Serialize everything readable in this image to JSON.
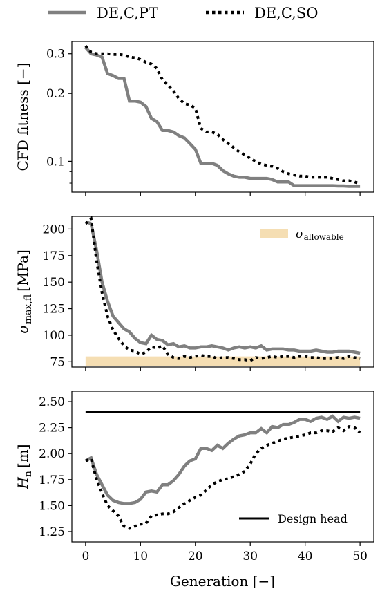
{
  "colors": {
    "pt": "#808080",
    "so": "#000000",
    "band": "#f5deb3",
    "design": "#000000"
  },
  "legend": {
    "pt_label": "DE,C,PT",
    "so_label": "DE,C,SO"
  },
  "chart_data": [
    {
      "type": "line",
      "ylabel": "CFD fitness [−]",
      "yscale": "log",
      "ylim": [
        0.073,
        0.34
      ],
      "xlim": [
        -2.5,
        52.5
      ],
      "yticks": [
        0.1,
        0.2,
        0.3
      ],
      "ytick_labels": [
        "0.1",
        "0.2",
        "0.3"
      ],
      "series": [
        {
          "name": "DE,C,PT",
          "style": "solid",
          "x": [
            0,
            1,
            2,
            3,
            4,
            5,
            6,
            7,
            8,
            9,
            10,
            11,
            12,
            13,
            14,
            15,
            16,
            17,
            18,
            19,
            20,
            21,
            22,
            23,
            24,
            25,
            26,
            27,
            28,
            29,
            30,
            31,
            32,
            33,
            34,
            35,
            36,
            37,
            38,
            39,
            40,
            41,
            42,
            43,
            44,
            45,
            46,
            47,
            48,
            49,
            50
          ],
          "values": [
            0.32,
            0.3,
            0.296,
            0.29,
            0.245,
            0.24,
            0.233,
            0.233,
            0.185,
            0.185,
            0.183,
            0.175,
            0.155,
            0.15,
            0.137,
            0.137,
            0.135,
            0.13,
            0.127,
            0.12,
            0.113,
            0.098,
            0.098,
            0.098,
            0.096,
            0.091,
            0.088,
            0.086,
            0.085,
            0.085,
            0.084,
            0.084,
            0.084,
            0.084,
            0.083,
            0.081,
            0.081,
            0.081,
            0.078,
            0.078,
            0.078,
            0.078,
            0.078,
            0.078,
            0.078,
            0.078,
            0.0778,
            0.0778,
            0.0775,
            0.0775,
            0.0775
          ]
        },
        {
          "name": "DE,C,SO",
          "style": "dotted",
          "x": [
            0,
            1,
            2,
            3,
            4,
            5,
            6,
            7,
            8,
            9,
            10,
            11,
            12,
            13,
            14,
            15,
            16,
            17,
            18,
            19,
            20,
            21,
            22,
            23,
            24,
            25,
            26,
            27,
            28,
            29,
            30,
            31,
            32,
            33,
            34,
            35,
            36,
            37,
            38,
            39,
            40,
            41,
            42,
            43,
            44,
            45,
            46,
            47,
            48,
            49,
            50
          ],
          "values": [
            0.325,
            0.305,
            0.3,
            0.3,
            0.3,
            0.298,
            0.298,
            0.296,
            0.29,
            0.288,
            0.283,
            0.275,
            0.27,
            0.258,
            0.23,
            0.218,
            0.205,
            0.19,
            0.18,
            0.178,
            0.172,
            0.14,
            0.135,
            0.135,
            0.132,
            0.125,
            0.12,
            0.115,
            0.11,
            0.107,
            0.103,
            0.1,
            0.097,
            0.096,
            0.095,
            0.093,
            0.09,
            0.088,
            0.087,
            0.086,
            0.086,
            0.085,
            0.085,
            0.085,
            0.085,
            0.084,
            0.083,
            0.082,
            0.082,
            0.081,
            0.0795
          ]
        }
      ]
    },
    {
      "type": "line",
      "ylabel_main": "σ",
      "ylabel_sub": "max,fl",
      "ylabel_unit": "[MPa]",
      "ylim": [
        70,
        212
      ],
      "xlim": [
        -2.5,
        52.5
      ],
      "yticks": [
        75,
        100,
        125,
        150,
        175,
        200
      ],
      "ytick_labels": [
        "75",
        "100",
        "125",
        "150",
        "175",
        "200"
      ],
      "band": {
        "from": 71,
        "to": 80,
        "legend_main": "σ",
        "legend_sub": "allowable"
      },
      "series": [
        {
          "name": "DE,C,PT",
          "style": "solid",
          "x": [
            0,
            1,
            2,
            3,
            4,
            5,
            6,
            7,
            8,
            9,
            10,
            11,
            12,
            13,
            14,
            15,
            16,
            17,
            18,
            19,
            20,
            21,
            22,
            23,
            24,
            25,
            26,
            27,
            28,
            29,
            30,
            31,
            32,
            33,
            34,
            35,
            36,
            37,
            38,
            39,
            40,
            41,
            42,
            43,
            44,
            45,
            46,
            47,
            48,
            49,
            50
          ],
          "values": [
            207,
            205,
            180,
            150,
            132,
            118,
            112,
            106,
            103,
            97,
            93,
            92,
            100,
            96,
            95,
            91,
            92,
            89,
            90,
            88,
            88,
            89,
            89,
            90,
            89,
            88,
            86,
            88,
            89,
            88,
            89,
            88,
            90,
            86,
            87,
            87,
            87,
            86,
            86,
            85,
            85,
            85,
            86,
            85,
            84,
            84,
            85,
            85,
            85,
            84,
            83
          ]
        },
        {
          "name": "DE,C,SO",
          "style": "dotted",
          "x": [
            0,
            1,
            2,
            3,
            4,
            5,
            6,
            7,
            8,
            9,
            10,
            11,
            12,
            13,
            14,
            15,
            16,
            17,
            18,
            19,
            20,
            21,
            22,
            23,
            24,
            25,
            26,
            27,
            28,
            29,
            30,
            31,
            32,
            33,
            34,
            35,
            36,
            37,
            38,
            39,
            40,
            41,
            42,
            43,
            44,
            45,
            46,
            47,
            48,
            49,
            50
          ],
          "values": [
            205,
            210,
            170,
            140,
            118,
            105,
            97,
            90,
            86,
            85,
            82,
            84,
            89,
            88,
            90,
            82,
            79,
            78,
            80,
            79,
            80,
            81,
            80,
            80,
            78,
            79,
            79,
            78,
            77,
            77,
            76,
            79,
            78,
            79,
            80,
            79,
            80,
            80,
            79,
            80,
            80,
            79,
            79,
            78,
            78,
            78,
            79,
            78,
            80,
            79,
            78
          ]
        }
      ]
    },
    {
      "type": "line",
      "ylabel_main": "H",
      "ylabel_sub": "n",
      "ylabel_unit": "[m]",
      "xlabel": "Generation [−]",
      "ylim": [
        1.15,
        2.6
      ],
      "xlim": [
        -2.5,
        52.5
      ],
      "yticks": [
        1.25,
        1.5,
        1.75,
        2.0,
        2.25,
        2.5
      ],
      "ytick_labels": [
        "1.25",
        "1.50",
        "1.75",
        "2.00",
        "2.25",
        "2.50"
      ],
      "xticks": [
        0,
        10,
        20,
        30,
        40,
        50
      ],
      "xtick_labels": [
        "0",
        "10",
        "20",
        "30",
        "40",
        "50"
      ],
      "design_head": {
        "value": 2.4,
        "label": "Design head"
      },
      "series": [
        {
          "name": "DE,C,PT",
          "style": "solid",
          "x": [
            0,
            1,
            2,
            3,
            4,
            5,
            6,
            7,
            8,
            9,
            10,
            11,
            12,
            13,
            14,
            15,
            16,
            17,
            18,
            19,
            20,
            21,
            22,
            23,
            24,
            25,
            26,
            27,
            28,
            29,
            30,
            31,
            32,
            33,
            34,
            35,
            36,
            37,
            38,
            39,
            40,
            41,
            42,
            43,
            44,
            45,
            46,
            47,
            48,
            49,
            50
          ],
          "values": [
            1.93,
            1.96,
            1.8,
            1.7,
            1.6,
            1.55,
            1.53,
            1.52,
            1.52,
            1.53,
            1.56,
            1.63,
            1.64,
            1.63,
            1.7,
            1.7,
            1.74,
            1.8,
            1.88,
            1.93,
            1.95,
            2.05,
            2.05,
            2.03,
            2.08,
            2.05,
            2.1,
            2.14,
            2.17,
            2.18,
            2.2,
            2.2,
            2.24,
            2.2,
            2.26,
            2.25,
            2.28,
            2.28,
            2.3,
            2.33,
            2.33,
            2.31,
            2.34,
            2.35,
            2.33,
            2.36,
            2.31,
            2.35,
            2.34,
            2.35,
            2.34
          ]
        },
        {
          "name": "DE,C,SO",
          "style": "dotted",
          "x": [
            0,
            1,
            2,
            3,
            4,
            5,
            6,
            7,
            8,
            9,
            10,
            11,
            12,
            13,
            14,
            15,
            16,
            17,
            18,
            19,
            20,
            21,
            22,
            23,
            24,
            25,
            26,
            27,
            28,
            29,
            30,
            31,
            32,
            33,
            34,
            35,
            36,
            37,
            38,
            39,
            40,
            41,
            42,
            43,
            44,
            45,
            46,
            47,
            48,
            49,
            50
          ],
          "values": [
            1.93,
            1.95,
            1.75,
            1.62,
            1.5,
            1.45,
            1.4,
            1.3,
            1.28,
            1.3,
            1.32,
            1.33,
            1.4,
            1.41,
            1.42,
            1.42,
            1.44,
            1.48,
            1.52,
            1.55,
            1.58,
            1.6,
            1.65,
            1.7,
            1.73,
            1.75,
            1.76,
            1.78,
            1.8,
            1.83,
            1.9,
            2.0,
            2.05,
            2.08,
            2.1,
            2.12,
            2.14,
            2.15,
            2.16,
            2.17,
            2.18,
            2.2,
            2.2,
            2.22,
            2.22,
            2.21,
            2.25,
            2.22,
            2.26,
            2.25,
            2.2
          ]
        }
      ]
    }
  ]
}
